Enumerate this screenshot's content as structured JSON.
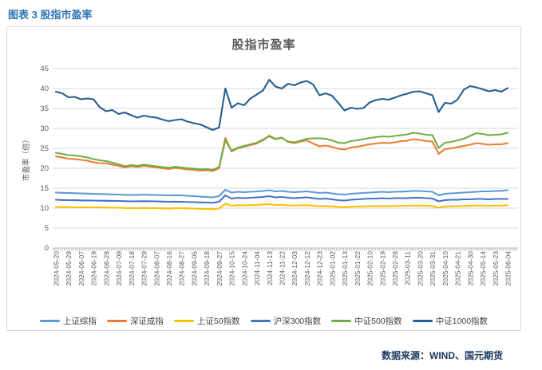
{
  "caption": "图表 3 股指市盈率",
  "source_note": "数据来源：WIND、国元期货",
  "colors": {
    "caption_blue": "#2E74B5",
    "title_gray": "#595959",
    "axis_text": "#595959",
    "gridline": "#D9D9D9",
    "axis_line": "#BFBFBF",
    "box_border": "#D9D9D9",
    "source_navy": "#17365D"
  },
  "chart_data": {
    "type": "line",
    "title": "股指市盈率",
    "xlabel": "",
    "ylabel": "市盈率（倍）",
    "ylim": [
      0,
      45
    ],
    "ytick_step": 5,
    "grid": true,
    "legend_position": "bottom",
    "points_per_label_interval": 2,
    "x_labels": [
      "2024-05-20",
      "2024-05-29",
      "2024-06-07",
      "2024-06-19",
      "2024-06-28",
      "2024-07-09",
      "2024-07-18",
      "2024-07-29",
      "2024-08-07",
      "2024-08-16",
      "2024-08-27",
      "2024-09-05",
      "2024-09-18",
      "2024-09-27",
      "2024-10-15",
      "2024-10-24",
      "2024-11-04",
      "2024-11-13",
      "2024-11-22",
      "2024-12-03",
      "2024-12-12",
      "2024-12-23",
      "2025-01-02",
      "2025-01-13",
      "2025-01-22",
      "2025-02-10",
      "2025-02-19",
      "2025-02-28",
      "2025-03-11",
      "2025-03-20",
      "2025-03-31",
      "2025-04-10",
      "2025-04-21",
      "2025-04-30",
      "2025-05-14",
      "2025-05-23",
      "2025-06-04"
    ],
    "series": [
      {
        "name": "上证综指",
        "color": "#5B9BD5",
        "values": [
          13.9,
          13.85,
          13.8,
          13.75,
          13.7,
          13.65,
          13.6,
          13.55,
          13.5,
          13.45,
          13.4,
          13.35,
          13.3,
          13.35,
          13.4,
          13.35,
          13.3,
          13.25,
          13.2,
          13.25,
          13.2,
          13.1,
          13.0,
          12.9,
          12.8,
          12.7,
          13.0,
          14.6,
          13.9,
          14.1,
          14.0,
          14.1,
          14.2,
          14.3,
          14.5,
          14.2,
          14.3,
          14.1,
          14.0,
          14.1,
          14.2,
          14.0,
          13.8,
          13.9,
          13.7,
          13.5,
          13.4,
          13.6,
          13.7,
          13.8,
          13.9,
          14.0,
          14.1,
          14.0,
          14.1,
          14.15,
          14.2,
          14.3,
          14.3,
          14.2,
          14.1,
          13.2,
          13.6,
          13.7,
          13.8,
          13.9,
          14.0,
          14.1,
          14.2,
          14.2,
          14.3,
          14.35,
          14.5
        ]
      },
      {
        "name": "深证成指",
        "color": "#ED7D31",
        "values": [
          23.0,
          22.7,
          22.4,
          22.3,
          22.1,
          21.9,
          21.5,
          21.3,
          21.2,
          20.9,
          20.6,
          20.2,
          20.5,
          20.3,
          20.6,
          20.4,
          20.2,
          20.0,
          19.8,
          20.1,
          19.9,
          19.7,
          19.6,
          19.4,
          19.5,
          19.3,
          20.0,
          27.6,
          24.2,
          25.0,
          25.4,
          25.8,
          26.2,
          27.0,
          28.2,
          27.4,
          27.7,
          26.6,
          26.3,
          26.7,
          27.0,
          26.2,
          25.5,
          25.7,
          25.4,
          24.9,
          24.7,
          25.2,
          25.4,
          25.7,
          26.0,
          26.2,
          26.4,
          26.3,
          26.5,
          26.8,
          26.9,
          27.3,
          27.1,
          26.8,
          26.7,
          23.6,
          24.8,
          25.0,
          25.3,
          25.6,
          25.9,
          26.3,
          26.1,
          25.9,
          26.0,
          26.0,
          26.3
        ]
      },
      {
        "name": "上证50指数",
        "color": "#FFC000",
        "values": [
          10.3,
          10.28,
          10.25,
          10.22,
          10.2,
          10.2,
          10.2,
          10.18,
          10.15,
          10.12,
          10.1,
          10.05,
          10.0,
          10.02,
          10.05,
          10.02,
          10.0,
          9.97,
          9.95,
          10.0,
          10.0,
          9.95,
          9.9,
          9.85,
          9.8,
          9.75,
          9.9,
          11.1,
          10.6,
          10.75,
          10.7,
          10.75,
          10.8,
          10.9,
          11.0,
          10.8,
          10.85,
          10.7,
          10.65,
          10.7,
          10.75,
          10.6,
          10.5,
          10.55,
          10.45,
          10.3,
          10.25,
          10.35,
          10.4,
          10.45,
          10.5,
          10.5,
          10.55,
          10.5,
          10.55,
          10.6,
          10.6,
          10.65,
          10.65,
          10.6,
          10.55,
          10.1,
          10.4,
          10.45,
          10.5,
          10.55,
          10.6,
          10.65,
          10.65,
          10.6,
          10.65,
          10.65,
          10.7
        ]
      },
      {
        "name": "沪深300指数",
        "color": "#4472C4",
        "values": [
          12.1,
          12.05,
          12.0,
          11.98,
          11.95,
          11.92,
          11.9,
          11.87,
          11.85,
          11.82,
          11.8,
          11.75,
          11.7,
          11.72,
          11.75,
          11.72,
          11.7,
          11.65,
          11.6,
          11.62,
          11.6,
          11.55,
          11.5,
          11.45,
          11.4,
          11.35,
          11.6,
          13.2,
          12.4,
          12.6,
          12.5,
          12.6,
          12.7,
          12.8,
          13.0,
          12.7,
          12.8,
          12.6,
          12.5,
          12.6,
          12.7,
          12.5,
          12.3,
          12.4,
          12.2,
          12.0,
          11.9,
          12.1,
          12.2,
          12.3,
          12.4,
          12.4,
          12.5,
          12.4,
          12.5,
          12.5,
          12.5,
          12.6,
          12.6,
          12.5,
          12.4,
          11.7,
          12.0,
          12.1,
          12.1,
          12.2,
          12.2,
          12.3,
          12.3,
          12.2,
          12.3,
          12.3,
          12.3
        ]
      },
      {
        "name": "中证500指数",
        "color": "#70AD47",
        "values": [
          23.9,
          23.6,
          23.3,
          23.2,
          23.0,
          22.7,
          22.3,
          22.0,
          21.8,
          21.4,
          21.0,
          20.5,
          20.8,
          20.6,
          20.9,
          20.7,
          20.5,
          20.3,
          20.1,
          20.4,
          20.2,
          20.0,
          19.9,
          19.7,
          19.8,
          19.6,
          20.3,
          27.0,
          24.4,
          25.2,
          25.6,
          26.0,
          26.4,
          27.2,
          28.0,
          27.3,
          27.6,
          26.7,
          26.5,
          26.9,
          27.4,
          27.5,
          27.5,
          27.4,
          27.0,
          26.4,
          26.3,
          26.8,
          27.0,
          27.3,
          27.6,
          27.8,
          28.0,
          27.9,
          28.1,
          28.3,
          28.5,
          28.9,
          28.7,
          28.4,
          28.3,
          25.1,
          26.4,
          26.6,
          27.0,
          27.4,
          28.1,
          28.8,
          28.6,
          28.3,
          28.4,
          28.5,
          28.9
        ]
      },
      {
        "name": "中证1000指数",
        "color": "#255E91",
        "values": [
          39.2,
          38.8,
          37.8,
          37.9,
          37.3,
          37.5,
          37.3,
          35.3,
          34.3,
          34.6,
          33.6,
          34.0,
          33.3,
          32.7,
          33.2,
          32.9,
          32.7,
          32.2,
          31.8,
          32.1,
          32.3,
          31.7,
          31.3,
          31.0,
          30.3,
          29.6,
          30.2,
          40.0,
          35.2,
          36.3,
          35.8,
          37.5,
          38.5,
          39.5,
          42.2,
          40.5,
          40.0,
          41.2,
          40.8,
          41.5,
          41.9,
          41.0,
          38.3,
          38.8,
          38.2,
          36.4,
          34.5,
          35.2,
          34.9,
          35.1,
          36.5,
          37.1,
          37.4,
          37.2,
          37.7,
          38.3,
          38.7,
          39.2,
          39.3,
          38.8,
          38.3,
          34.1,
          36.4,
          36.2,
          37.2,
          39.7,
          40.6,
          40.3,
          39.8,
          39.3,
          39.6,
          39.2,
          40.1
        ]
      }
    ]
  }
}
